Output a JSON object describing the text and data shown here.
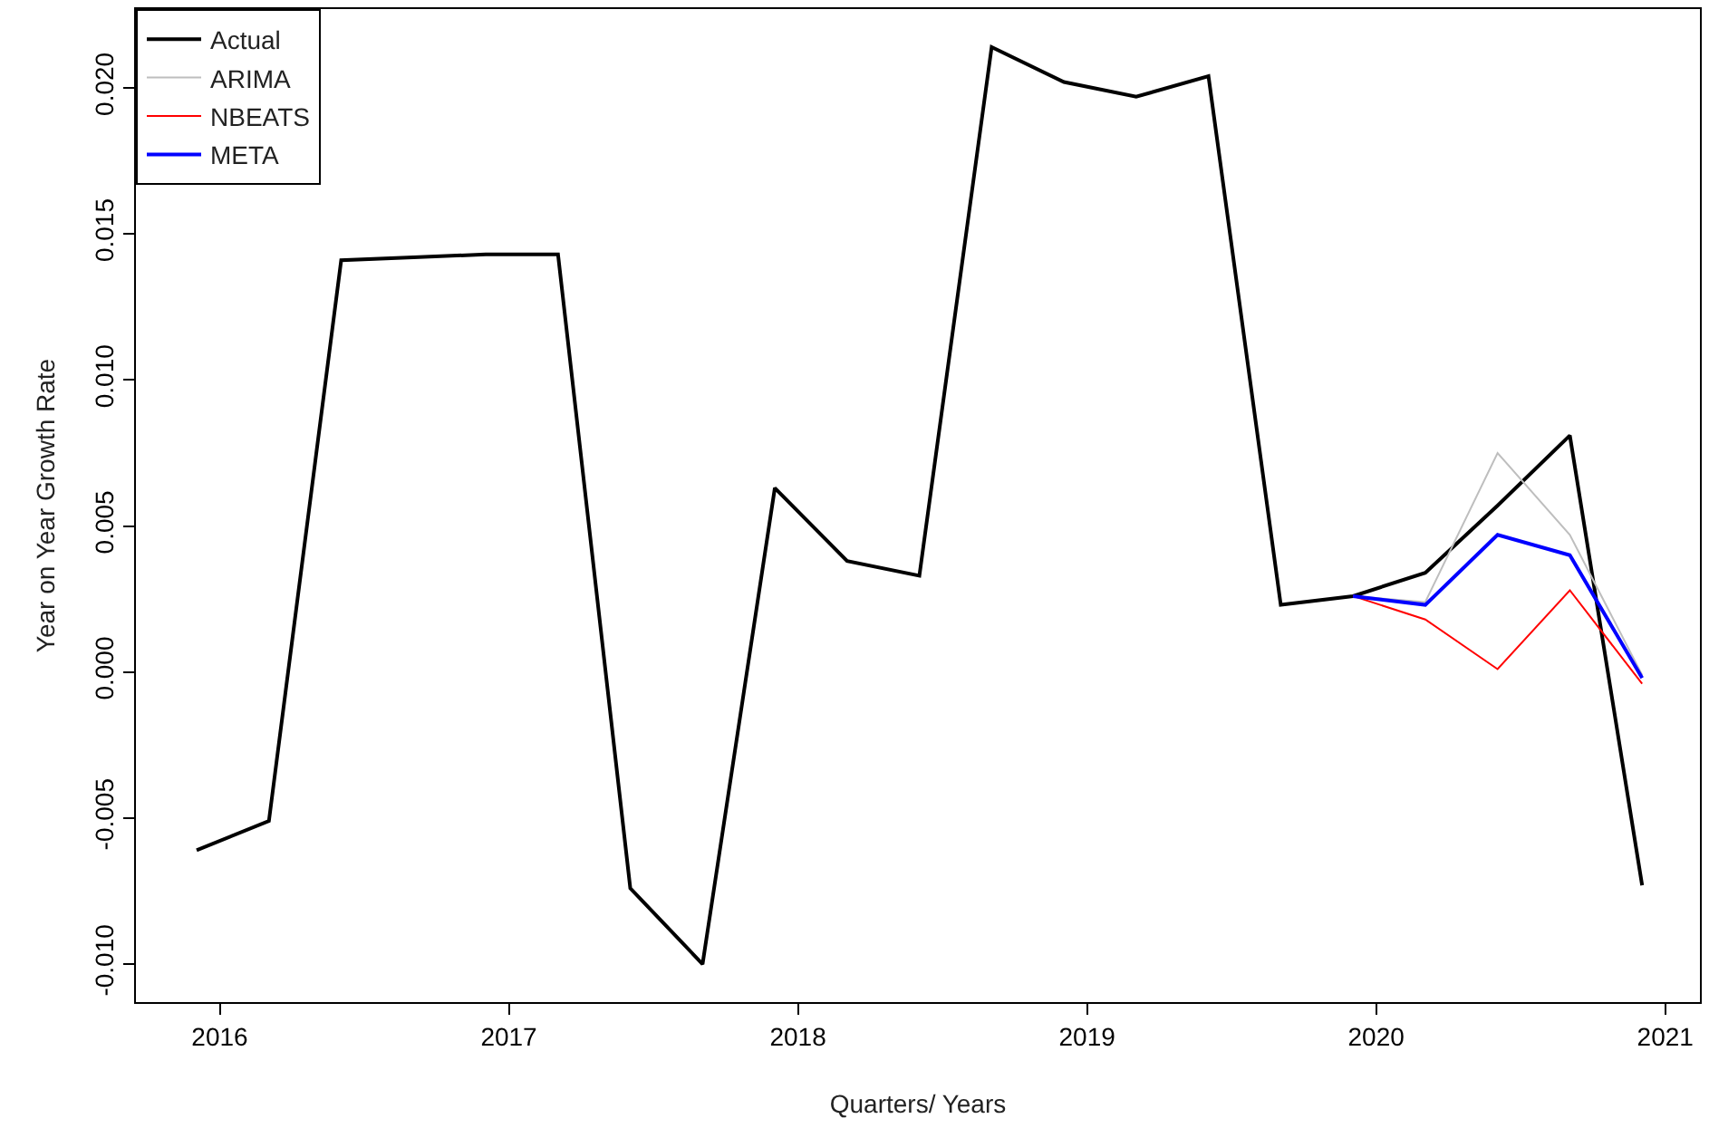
{
  "chart_data": {
    "type": "line",
    "xlabel": "Quarters/ Years",
    "ylabel": "Year on Year Growth Rate",
    "x": [
      2015.92,
      2016.17,
      2016.42,
      2016.67,
      2016.92,
      2017.17,
      2017.42,
      2017.67,
      2017.92,
      2018.17,
      2018.42,
      2018.67,
      2018.92,
      2019.17,
      2019.42,
      2019.67,
      2019.92,
      2020.17,
      2020.42,
      2020.67,
      2020.92
    ],
    "series": [
      {
        "name": "Actual",
        "color": "#000000",
        "values": [
          -0.0061,
          -0.0051,
          0.0141,
          0.0142,
          0.0143,
          0.0143,
          -0.0074,
          -0.01,
          0.0063,
          0.0038,
          0.0033,
          0.0214,
          0.0202,
          0.0197,
          0.0204,
          0.0023,
          0.0026,
          0.0034,
          0.0057,
          0.0081,
          -0.0073
        ]
      },
      {
        "name": "ARIMA",
        "color": "#bebebe",
        "values": [
          null,
          null,
          null,
          null,
          null,
          null,
          null,
          null,
          null,
          null,
          null,
          null,
          null,
          null,
          null,
          null,
          0.0026,
          0.0024,
          0.0075,
          0.0047,
          -0.0001
        ]
      },
      {
        "name": "NBEATS",
        "color": "#ff0000",
        "values": [
          null,
          null,
          null,
          null,
          null,
          null,
          null,
          null,
          null,
          null,
          null,
          null,
          null,
          null,
          null,
          null,
          0.0026,
          0.0018,
          0.0001,
          0.0028,
          -0.0004
        ]
      },
      {
        "name": "META",
        "color": "#0000ff",
        "values": [
          null,
          null,
          null,
          null,
          null,
          null,
          null,
          null,
          null,
          null,
          null,
          null,
          null,
          null,
          null,
          null,
          0.0026,
          0.0023,
          0.0047,
          0.004,
          -0.0002
        ]
      }
    ],
    "xlim": [
      2015.71,
      2021.12
    ],
    "xticks": [
      2016,
      2017,
      2018,
      2019,
      2020,
      2021
    ],
    "ylim": [
      -0.0113,
      0.0227
    ],
    "yticks": [
      {
        "value": -0.01,
        "label": "-0.010"
      },
      {
        "value": -0.005,
        "label": "-0.005"
      },
      {
        "value": 0,
        "label": "0.000"
      },
      {
        "value": 0.005,
        "label": "0.005"
      },
      {
        "value": 0.01,
        "label": "0.010"
      },
      {
        "value": 0.015,
        "label": "0.015"
      },
      {
        "value": 0.02,
        "label": "0.020"
      }
    ],
    "legend": "top left",
    "marker": "none",
    "line_style": "solid"
  }
}
